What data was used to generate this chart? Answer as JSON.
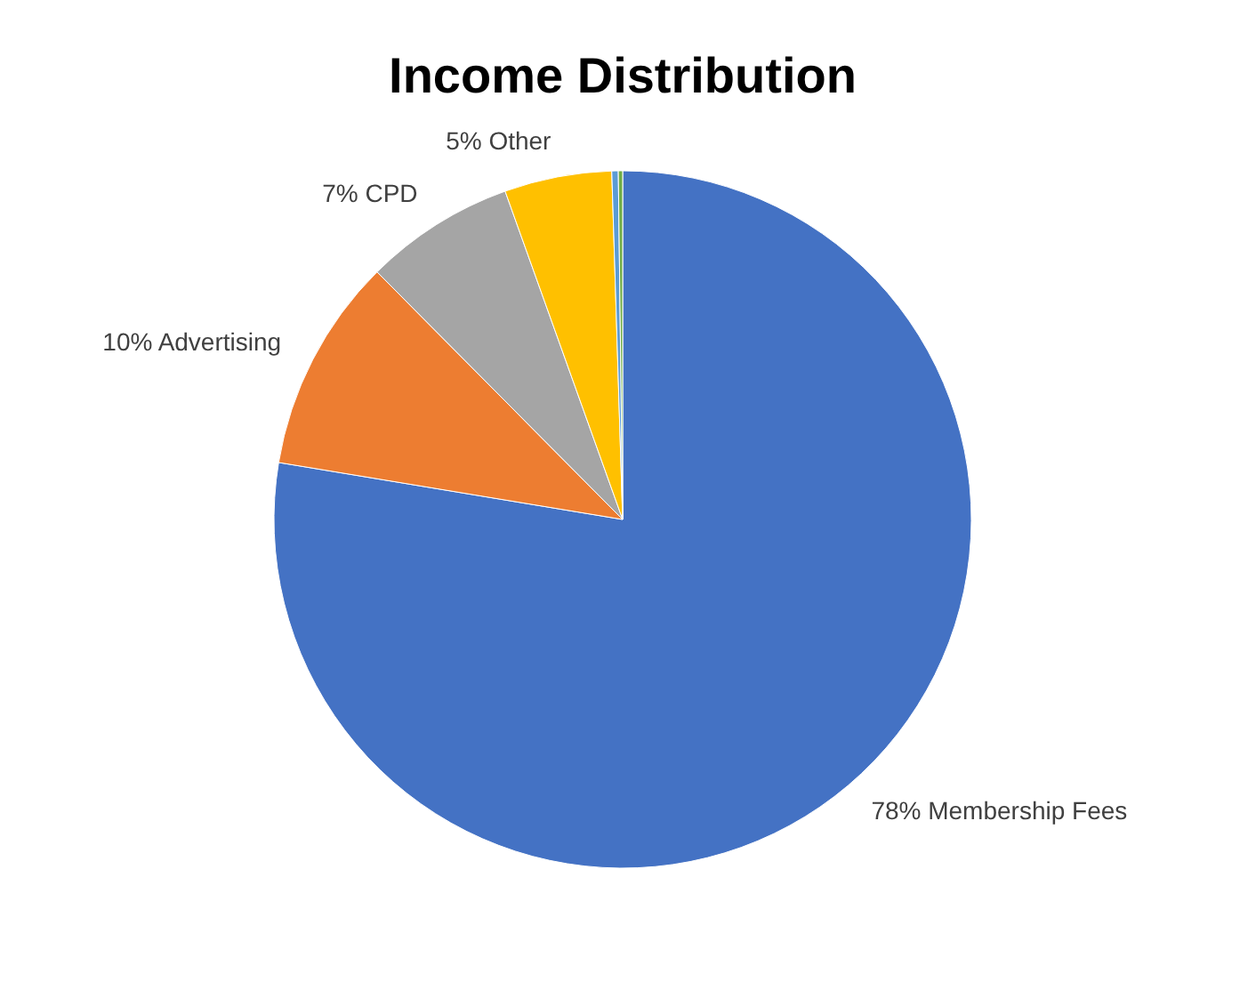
{
  "chart_data": {
    "type": "pie",
    "title": "Income Distribution",
    "categories": [
      "Membership Fees",
      "Advertising",
      "CPD",
      "Other",
      null,
      null
    ],
    "values": [
      78,
      10,
      7,
      5,
      0.3,
      0.2
    ],
    "value_labels": [
      "78%",
      "10%",
      "7%",
      "5%",
      null,
      null
    ],
    "colors": [
      "#4472c4",
      "#ed7d31",
      "#a5a5a5",
      "#ffc000",
      "#5b9bd5",
      "#70ad47"
    ],
    "legend": false
  }
}
